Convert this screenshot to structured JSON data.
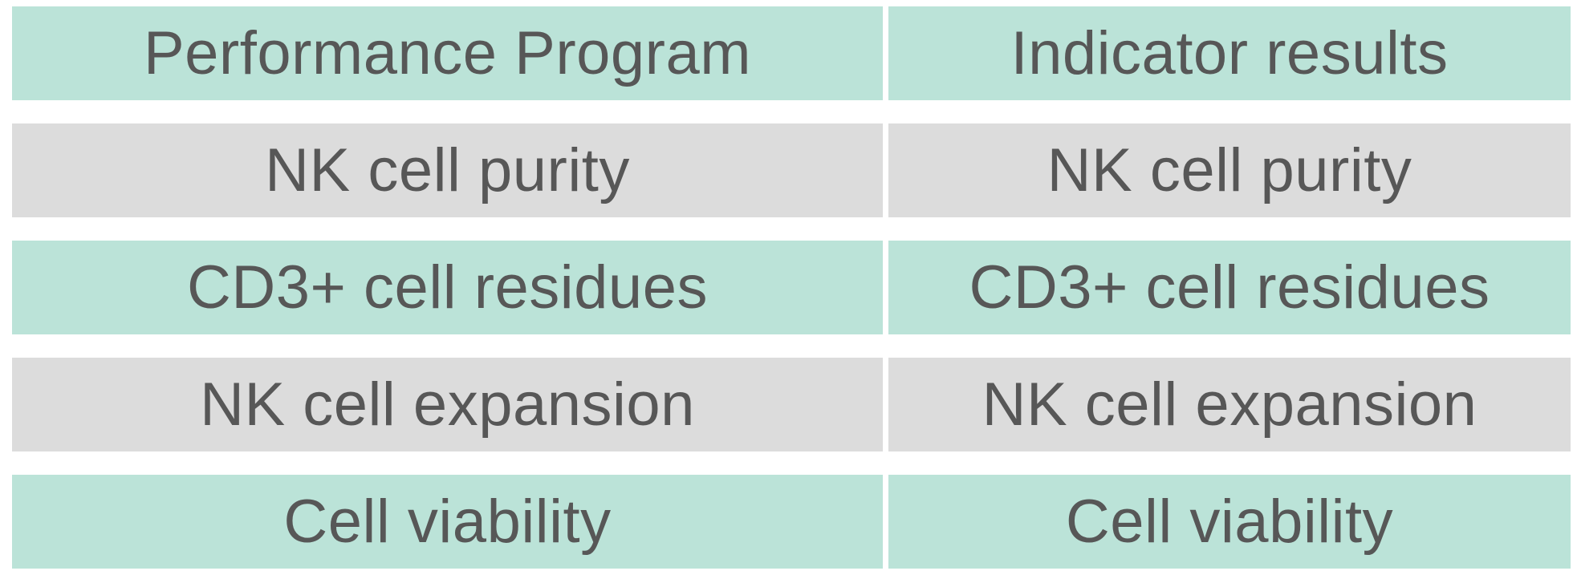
{
  "table": {
    "headers": [
      "Performance Program",
      "Indicator results"
    ],
    "rows": [
      [
        "NK cell purity",
        "NK cell purity"
      ],
      [
        "CD3+ cell residues",
        "CD3+ cell residues"
      ],
      [
        "NK cell expansion",
        "NK cell expansion"
      ],
      [
        "Cell viability",
        "Cell viability"
      ]
    ]
  },
  "colors": {
    "header_fill": "#bbe3d8",
    "row_odd_fill": "#dcdcdc",
    "row_even_fill": "#bbe3d8",
    "text": "#575757"
  }
}
